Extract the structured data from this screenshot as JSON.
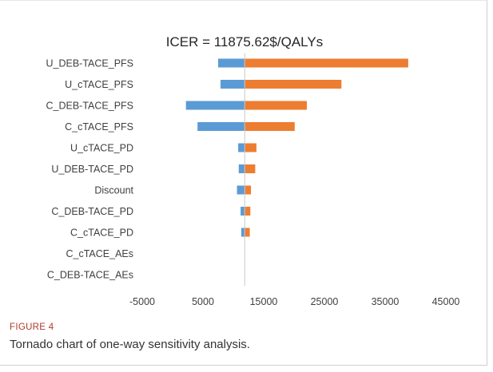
{
  "chart_data": {
    "type": "bar",
    "subtype": "tornado",
    "title": "ICER = 11875.62$/QALYs",
    "base_value": 11875.62,
    "xlabel": "",
    "ylabel": "",
    "xlim": [
      -5000,
      45000
    ],
    "x_ticks": [
      "-5000",
      "5000",
      "15000",
      "25000",
      "35000",
      "45000"
    ],
    "categories": [
      "U_DEB-TACE_PFS",
      "U_cTACE_PFS",
      "C_DEB-TACE_PFS",
      "C_cTACE_PFS",
      "U_cTACE_PD",
      "U_DEB-TACE_PD",
      "Discount",
      "C_DEB-TACE_PD",
      "C_cTACE_PD",
      "C_cTACE_AEs",
      "C_DEB-TACE_AEs"
    ],
    "series": [
      {
        "color": "#5b9bd5",
        "values": [
          7500,
          7900,
          2200,
          4100,
          10800,
          10900,
          10600,
          11200,
          11300,
          11875.62,
          11875.62
        ]
      },
      {
        "color": "#ed7d31",
        "values": [
          38800,
          27800,
          22100,
          20100,
          13800,
          13600,
          12900,
          12800,
          12700,
          11875.62,
          11875.62
        ]
      }
    ],
    "grid": false,
    "legend": "none"
  },
  "figure": {
    "label": "FIGURE 4",
    "caption": "Tornado chart of one-way sensitivity analysis."
  }
}
